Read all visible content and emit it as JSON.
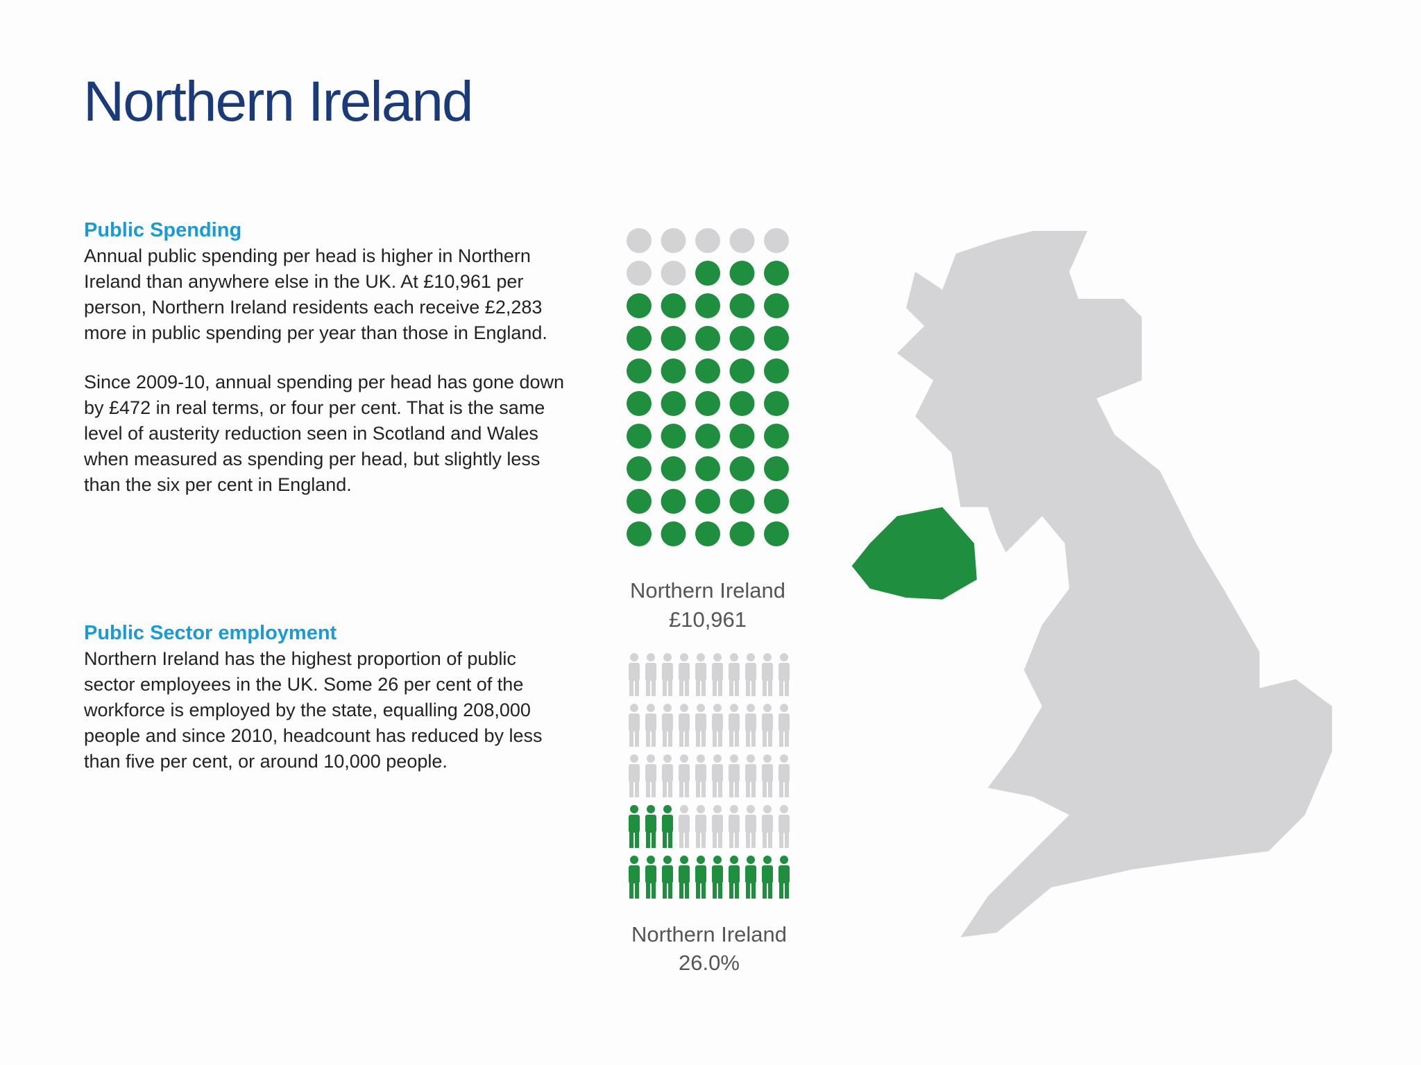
{
  "title": "Northern Ireland",
  "public_spending": {
    "heading": "Public Spending",
    "paragraphs": [
      "Annual public spending per head is higher in Northern Ireland than anywhere else in the UK. At £10,961 per person, Northern Ireland residents each receive £2,283 more in public spending per year than those in England.",
      "Since 2009-10, annual spending per head has gone down by £472 in real terms, or four per cent. That is the same level of austerity reduction seen in Scotland and Wales when measured as spending per head, but slightly less than the six per cent in England."
    ]
  },
  "public_sector_employment": {
    "heading": "Public Sector employment",
    "paragraphs": [
      "Northern Ireland has the highest proportion of public sector employees in the UK. Some 26 per cent of the workforce is employed by the state, equalling 208,000 people and since 2010, headcount has reduced by less than five per cent, or around 10,000 people."
    ]
  },
  "spending_graphic": {
    "label": "Northern Ireland",
    "value_label": "£10,961"
  },
  "employment_graphic": {
    "label": "Northern Ireland",
    "value": 26.0,
    "value_label": "26.0%"
  }
}
